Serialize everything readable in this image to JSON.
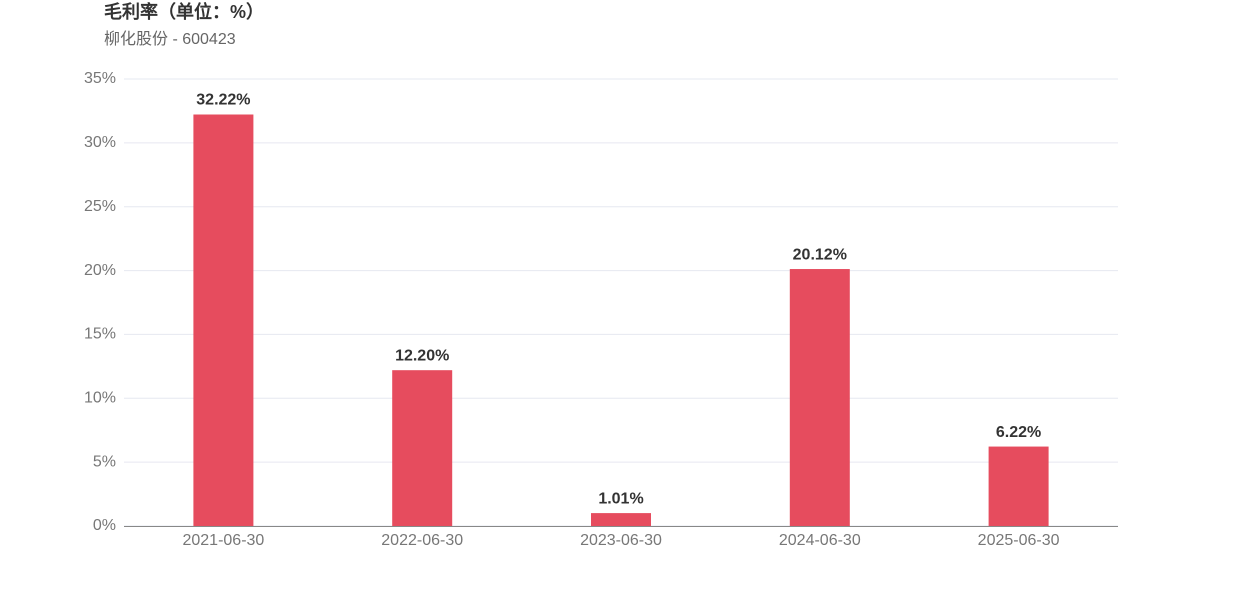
{
  "chart_data": {
    "type": "bar",
    "title": "毛利率（单位：%）",
    "subtitle": "柳化股份 - 600423",
    "categories": [
      "2021-06-30",
      "2022-06-30",
      "2023-06-30",
      "2024-06-30",
      "2025-06-30"
    ],
    "values": [
      32.22,
      12.2,
      1.01,
      20.12,
      6.22
    ],
    "value_labels": [
      "32.22%",
      "12.20%",
      "1.01%",
      "20.12%",
      "6.22%"
    ],
    "color": "#e64c5e",
    "ylim": [
      0,
      35
    ],
    "yticks": [
      {
        "value": 0,
        "label": "0%"
      },
      {
        "value": 5,
        "label": "5%"
      },
      {
        "value": 10,
        "label": "10%"
      },
      {
        "value": 15,
        "label": "15%"
      },
      {
        "value": 20,
        "label": "20%"
      },
      {
        "value": 25,
        "label": "25%"
      },
      {
        "value": 30,
        "label": "30%"
      },
      {
        "value": 35,
        "label": "35%"
      }
    ],
    "grid": true
  }
}
